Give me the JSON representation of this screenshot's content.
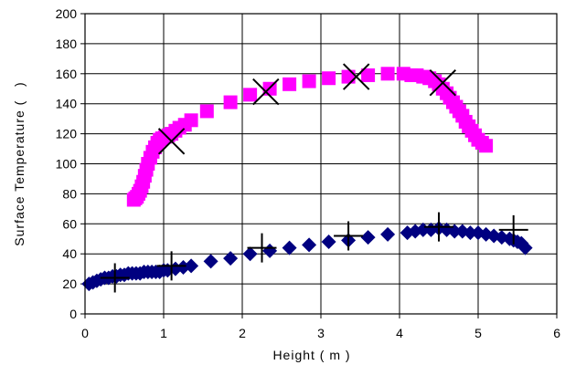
{
  "chart_data": {
    "type": "scatter",
    "title": "",
    "xlabel": "Height ( m )",
    "ylabel": "Surface Temperature (   )",
    "xlim": [
      0,
      6
    ],
    "ylim": [
      0,
      200
    ],
    "xticks": [
      "0",
      "1",
      "2",
      "3",
      "4",
      "5",
      "6"
    ],
    "yticks": [
      "0",
      "20",
      "40",
      "60",
      "80",
      "100",
      "120",
      "140",
      "160",
      "180",
      "200"
    ],
    "grid": true,
    "legend": "none",
    "series": [
      {
        "marker": "square",
        "color": "#ff00ff",
        "x": [
          0.62,
          0.64,
          0.66,
          0.68,
          0.7,
          0.72,
          0.74,
          0.76,
          0.78,
          0.8,
          0.83,
          0.86,
          0.89,
          0.92,
          0.95,
          0.98,
          1.02,
          1.06,
          1.1,
          1.15,
          1.2,
          1.27,
          1.35,
          1.55,
          1.85,
          2.1,
          2.35,
          2.6,
          2.85,
          3.1,
          3.35,
          3.6,
          3.85,
          4.05,
          4.15,
          4.22,
          4.3,
          4.38,
          4.45,
          4.5,
          4.55,
          4.6,
          4.64,
          4.68,
          4.72,
          4.76,
          4.8,
          4.84,
          4.88,
          4.92,
          4.96,
          5.0,
          5.05,
          5.1
        ],
        "y": [
          76,
          77,
          78,
          80,
          82,
          85,
          88,
          92,
          96,
          100,
          104,
          108,
          111,
          114,
          116,
          117,
          118,
          119,
          120,
          122,
          124,
          126,
          129,
          135,
          141,
          146,
          150,
          153,
          155,
          157,
          158,
          159,
          160,
          160,
          159,
          159,
          158,
          157,
          155,
          153,
          150,
          147,
          144,
          141,
          138,
          135,
          132,
          128,
          125,
          122,
          119,
          116,
          114,
          112
        ]
      },
      {
        "marker": "diamond",
        "color": "#000080",
        "x": [
          0.05,
          0.1,
          0.15,
          0.2,
          0.25,
          0.3,
          0.35,
          0.4,
          0.45,
          0.5,
          0.55,
          0.6,
          0.65,
          0.7,
          0.75,
          0.8,
          0.85,
          0.9,
          0.95,
          1.0,
          1.05,
          1.15,
          1.25,
          1.35,
          1.6,
          1.85,
          2.1,
          2.35,
          2.6,
          2.85,
          3.1,
          3.35,
          3.6,
          3.85,
          4.1,
          4.2,
          4.3,
          4.4,
          4.5,
          4.6,
          4.7,
          4.8,
          4.9,
          5.0,
          5.1,
          5.2,
          5.3,
          5.4,
          5.45,
          5.5,
          5.55,
          5.6
        ],
        "y": [
          20,
          21,
          22,
          23,
          24,
          24,
          25,
          25,
          26,
          26,
          27,
          27,
          27,
          27,
          28,
          28,
          28,
          28,
          28,
          29,
          29,
          30,
          31,
          32,
          35,
          37,
          40,
          42,
          44,
          46,
          48,
          49,
          51,
          53,
          54,
          55,
          56,
          56,
          57,
          56,
          55,
          55,
          54,
          54,
          53,
          52,
          51,
          50,
          49,
          48,
          47,
          44
        ]
      },
      {
        "marker": "x",
        "color": "#000000",
        "x": [
          1.1,
          2.3,
          3.45,
          4.55
        ],
        "y": [
          115,
          148,
          158,
          154
        ]
      },
      {
        "marker": "plus",
        "color": "#000000",
        "x": [
          0.38,
          1.1,
          2.25,
          3.35,
          4.5,
          5.45
        ],
        "y": [
          24,
          32,
          44,
          52,
          58,
          56
        ]
      }
    ]
  }
}
